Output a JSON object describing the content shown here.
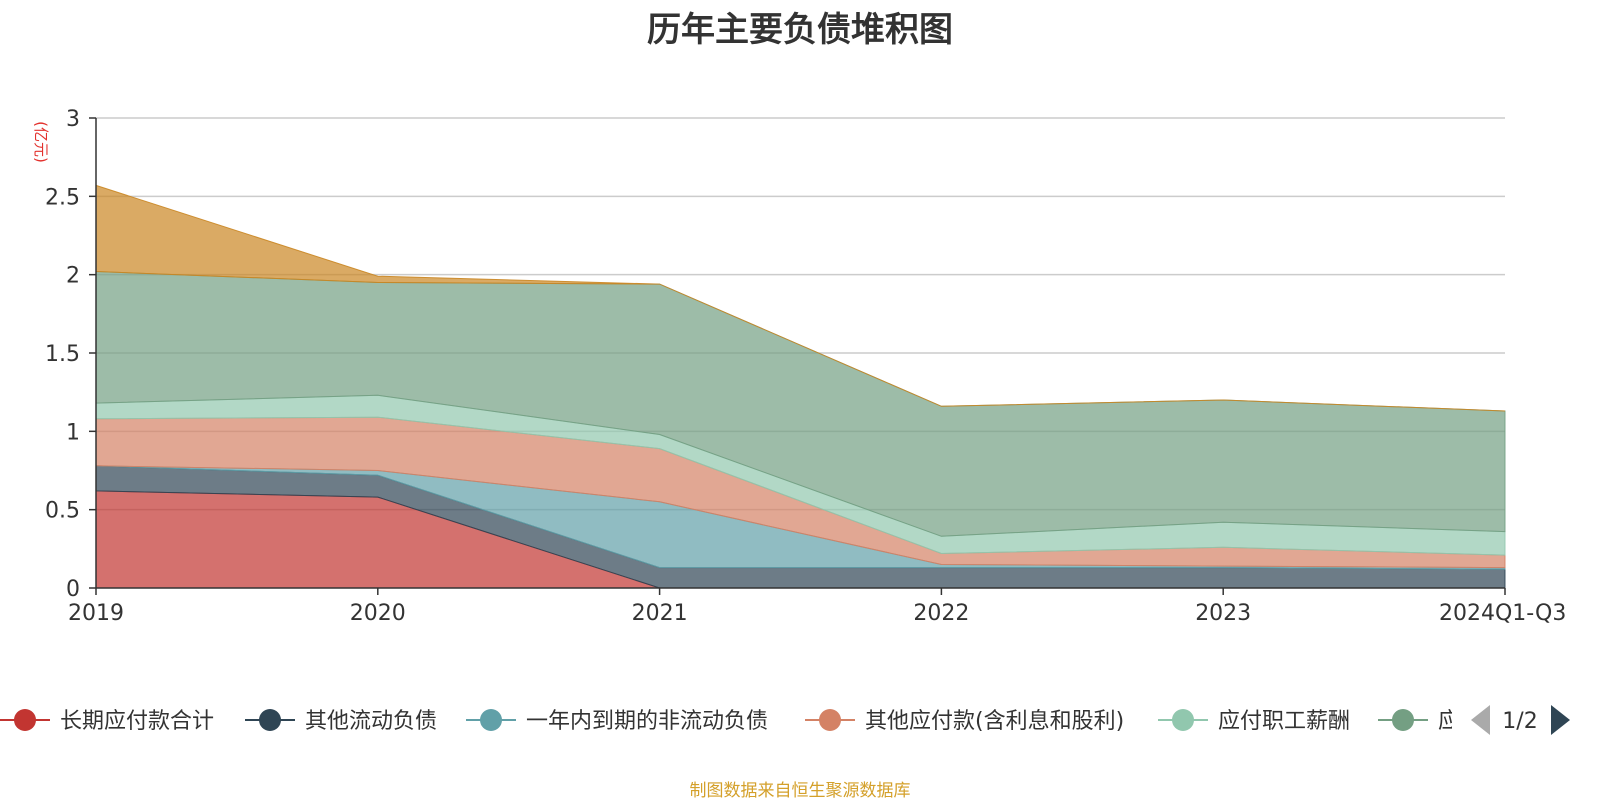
{
  "chart_data": {
    "type": "area",
    "stacked": true,
    "title": "历年主要负债堆积图",
    "ylabel": "(亿元)",
    "xlabel": "",
    "categories": [
      "2019",
      "2020",
      "2021",
      "2022",
      "2023",
      "2024Q1-Q3"
    ],
    "ylim": [
      0,
      3
    ],
    "yticks": [
      "0",
      "0.5",
      "1",
      "1.5",
      "2",
      "2.5",
      "3"
    ],
    "grid": true,
    "series": [
      {
        "name": "长期应付款合计",
        "color": "#c23531",
        "values": [
          0.62,
          0.58,
          0.0,
          0.0,
          0.0,
          0.0
        ]
      },
      {
        "name": "其他流动负债",
        "color": "#2f4554",
        "values": [
          0.16,
          0.14,
          0.13,
          0.13,
          0.13,
          0.12
        ]
      },
      {
        "name": "一年内到期的非流动负债",
        "color": "#61a0a8",
        "values": [
          0.0,
          0.03,
          0.42,
          0.02,
          0.01,
          0.01
        ]
      },
      {
        "name": "其他应付款(含利息和股利)",
        "color": "#d48265",
        "values": [
          0.3,
          0.34,
          0.34,
          0.07,
          0.12,
          0.08
        ]
      },
      {
        "name": "应付职工薪酬",
        "color": "#91c7ae",
        "values": [
          0.1,
          0.14,
          0.09,
          0.11,
          0.16,
          0.15
        ]
      },
      {
        "name": "应付账款",
        "color": "#749f83",
        "values": [
          0.84,
          0.72,
          0.96,
          0.83,
          0.78,
          0.77
        ]
      },
      {
        "name": "",
        "color": "#ca8622",
        "values": [
          0.55,
          0.04,
          0.0,
          0.0,
          0.0,
          0.0
        ]
      }
    ],
    "legend": {
      "position": "bottom",
      "visible_labels": [
        "长期应付款合计",
        "其他流动负债",
        "一年内到期的非流动负债",
        "其他应付款(含利息和股利)",
        "应付职工薪酬",
        "应"
      ],
      "page": "1/2"
    }
  },
  "source_note": "制图数据来自恒生聚源数据库"
}
